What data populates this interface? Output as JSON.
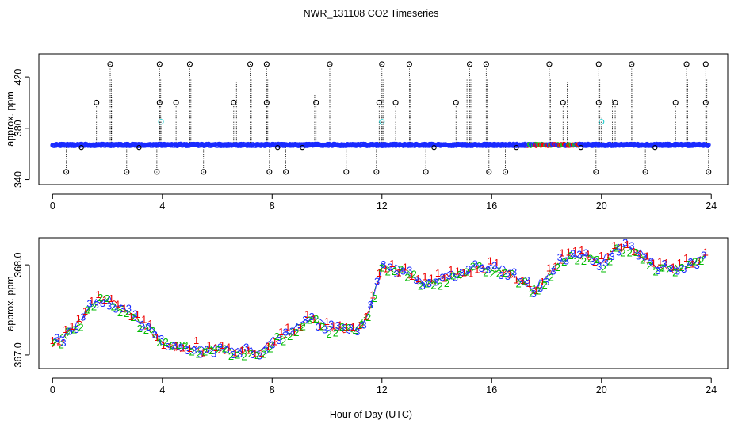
{
  "figure": {
    "title": "NWR_131108  CO2 Timeseries",
    "xlabel": "Hour of Day (UTC)"
  },
  "chart_data": [
    {
      "type": "scatter",
      "panel": "top",
      "ylabel": "approx. ppm",
      "xlim": [
        -0.5,
        24.6
      ],
      "ylim": [
        336,
        438
      ],
      "xticks": [
        0,
        4,
        8,
        12,
        16,
        20,
        24
      ],
      "yticks": [
        340,
        380,
        420
      ],
      "ytick_labels": [
        "340",
        "380",
        "420"
      ],
      "baseline_ppm": 367,
      "marker_colors": {
        "main": "#1a2bff",
        "outlier": "#000000",
        "cyan": "#22cccc",
        "red": "#ff0000",
        "green": "#22bb22"
      },
      "high_outliers_430": [
        2.1,
        3.9,
        5.0,
        7.2,
        7.8,
        10.1,
        12.0,
        13.0,
        15.2,
        15.8,
        18.1,
        19.9,
        21.1,
        23.1,
        23.8
      ],
      "outliers_400": [
        1.6,
        3.9,
        4.5,
        6.6,
        7.8,
        9.6,
        11.9,
        12.5,
        14.7,
        18.6,
        19.9,
        20.5,
        22.7,
        23.8
      ],
      "cyan_points_385": [
        3.95,
        12.0,
        20.0
      ],
      "low_outliers_346": [
        0.5,
        2.7,
        3.8,
        5.5,
        7.9,
        8.5,
        10.7,
        11.8,
        13.6,
        15.9,
        16.5,
        19.8,
        21.6,
        23.9
      ]
    },
    {
      "type": "scatter",
      "panel": "bottom",
      "ylabel": "approx. ppm",
      "xlim": [
        -0.5,
        24.6
      ],
      "ylim": [
        366.85,
        368.3
      ],
      "xticks": [
        0,
        4,
        8,
        12,
        16,
        20,
        24
      ],
      "yticks": [
        367.0,
        368.0
      ],
      "ytick_labels": [
        "367.0",
        "368.0"
      ],
      "marker_labels": [
        "1",
        "2",
        "3"
      ],
      "series_colors": [
        "#ee0000",
        "#00bb00",
        "#1a2bff"
      ],
      "trend": {
        "x": [
          0,
          0.5,
          1,
          1.5,
          2,
          2.5,
          3,
          3.5,
          4,
          4.5,
          5,
          5.5,
          6,
          6.5,
          7,
          7.5,
          8,
          8.5,
          9,
          9.5,
          10,
          10.5,
          11,
          11.5,
          12,
          12.5,
          13,
          13.5,
          14,
          14.5,
          15,
          15.5,
          16,
          16.5,
          17,
          17.5,
          18,
          18.5,
          19,
          19.5,
          20,
          20.5,
          21,
          21.5,
          22,
          22.5,
          23,
          23.5,
          23.8
        ],
        "y": [
          367.13,
          367.22,
          367.38,
          367.58,
          367.62,
          367.52,
          367.42,
          367.3,
          367.12,
          367.08,
          367.1,
          367.06,
          367.08,
          367.04,
          367.06,
          367.02,
          367.15,
          367.22,
          367.33,
          367.4,
          367.3,
          367.3,
          367.25,
          367.45,
          367.97,
          367.95,
          367.9,
          367.78,
          367.83,
          367.88,
          367.9,
          367.98,
          367.97,
          367.93,
          367.85,
          367.72,
          367.85,
          368.05,
          368.1,
          368.1,
          368.02,
          368.17,
          368.22,
          368.1,
          367.98,
          367.95,
          367.98,
          368.05,
          368.1
        ]
      }
    }
  ]
}
